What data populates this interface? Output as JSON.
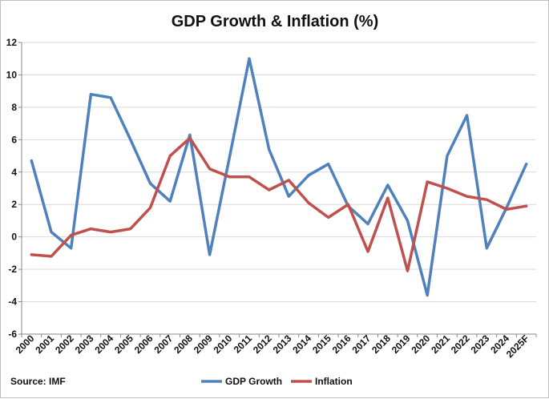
{
  "chart_data": {
    "type": "line",
    "title": "GDP Growth & Inflation (%)",
    "xlabel": "",
    "ylabel": "",
    "x": [
      "2000",
      "2001",
      "2002",
      "2003",
      "2004",
      "2005",
      "2006",
      "2007",
      "2008",
      "2009",
      "2010",
      "2011",
      "2012",
      "2013",
      "2014",
      "2015",
      "2016",
      "2017",
      "2018",
      "2019",
      "2020",
      "2021",
      "2022",
      "2023",
      "2024",
      "2025F"
    ],
    "ylim": [
      -6,
      12
    ],
    "yticks": [
      -6,
      -4,
      -2,
      0,
      2,
      4,
      6,
      8,
      10,
      12
    ],
    "grid": "horizontal",
    "legend_position": "bottom",
    "series": [
      {
        "name": "GDP Growth",
        "color": "#4F81BD",
        "values": [
          4.7,
          0.3,
          -0.7,
          8.8,
          8.6,
          6.0,
          3.3,
          2.2,
          6.3,
          -1.1,
          4.9,
          11.0,
          5.4,
          2.5,
          3.8,
          4.5,
          1.9,
          0.8,
          3.2,
          1.0,
          -3.6,
          5.0,
          7.5,
          -0.7,
          1.8,
          4.5
        ]
      },
      {
        "name": "Inflation",
        "color": "#C0504D",
        "values": [
          -1.1,
          -1.2,
          0.1,
          0.5,
          0.3,
          0.5,
          1.8,
          5.0,
          6.1,
          4.2,
          3.7,
          3.7,
          2.9,
          3.5,
          2.1,
          1.2,
          2.0,
          -0.9,
          2.4,
          -2.1,
          3.4,
          3.0,
          2.5,
          2.3,
          1.7,
          1.9
        ]
      }
    ],
    "source_note": "Source: IMF"
  }
}
